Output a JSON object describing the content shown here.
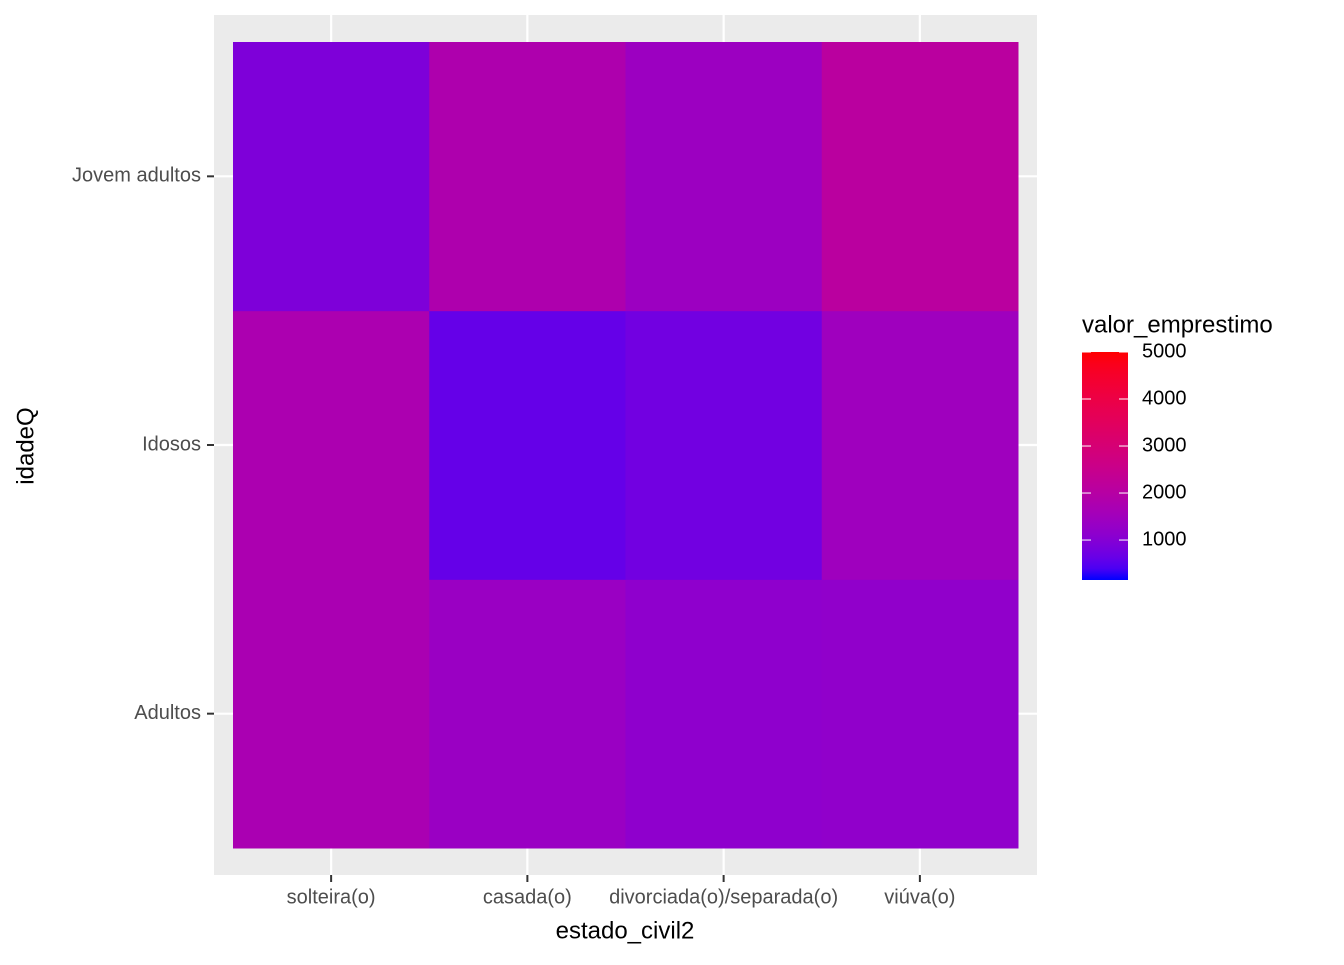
{
  "chart_data": {
    "type": "heatmap",
    "x_label": "estado_civil2",
    "y_label": "idadeQ",
    "x_categories": [
      "solteira(o)",
      "casada(o)",
      "divorciada(o)/separada(o)",
      "viúva(o)"
    ],
    "y_categories": [
      "Adultos",
      "Idosos",
      "Jovem adultos"
    ],
    "values": [
      [
        1700,
        1350,
        1150,
        1200
      ],
      [
        1750,
        600,
        750,
        1450
      ],
      [
        900,
        1800,
        1400,
        2100
      ]
    ],
    "legend_title": "valor_emprestimo",
    "low_color": "#0000FF",
    "high_color": "#FF0000",
    "colorlim": [
      150,
      5000
    ],
    "colorticks": [
      1000,
      2000,
      3000,
      4000,
      5000
    ],
    "grid": true
  }
}
